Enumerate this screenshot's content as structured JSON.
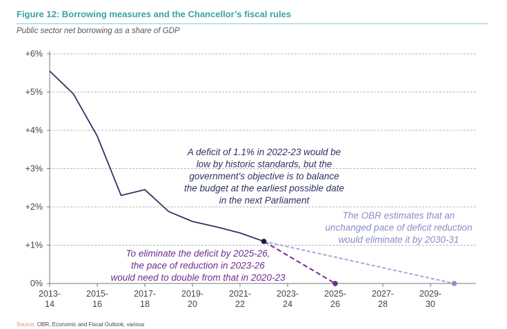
{
  "header": {
    "title": "Figure 12: Borrowing measures and the Chancellor’s fiscal rules",
    "subtitle": "Public sector net borrowing as a share of GDP"
  },
  "source": {
    "label": "Source:",
    "text": "OBR, Economic and Fiscal Outlook, various"
  },
  "colors": {
    "actual": "#2e3163",
    "purple": "#6f2c91",
    "lavender": "#a4a6d4",
    "lavender_point": "#8c8ec8",
    "grid": "#b5b5b5",
    "title": "#3aa3a3"
  },
  "chart_data": {
    "type": "line",
    "y_tick_labels": [
      "0%",
      "+1%",
      "+2%",
      "+3%",
      "+4%",
      "+5%",
      "+6%"
    ],
    "y_tick_values": [
      0,
      1,
      2,
      3,
      4,
      5,
      6
    ],
    "ylim": [
      0,
      6
    ],
    "x_tick_labels": [
      [
        "2013-",
        "14"
      ],
      [
        "2015-",
        "16"
      ],
      [
        "2017-",
        "18"
      ],
      [
        "2019-",
        "20"
      ],
      [
        "2021-",
        "22"
      ],
      [
        "2023-",
        "24"
      ],
      [
        "2025-",
        "26"
      ],
      [
        "2027-",
        "28"
      ],
      [
        "2029-",
        "30"
      ]
    ],
    "grid": true,
    "series": [
      {
        "style": "solid",
        "x": [
          "2013-14",
          "2014-15",
          "2015-16",
          "2016-17",
          "2017-18",
          "2018-19",
          "2019-20",
          "2020-21",
          "2021-22",
          "2022-23"
        ],
        "values": [
          5.55,
          4.95,
          3.85,
          2.3,
          2.45,
          1.88,
          1.62,
          1.48,
          1.32,
          1.1
        ]
      },
      {
        "style": "dashed",
        "x": [
          "2022-23",
          "2025-26"
        ],
        "values": [
          1.1,
          0
        ]
      },
      {
        "style": "dashed",
        "x": [
          "2022-23",
          "2030-31"
        ],
        "values": [
          1.1,
          0
        ]
      }
    ],
    "annotations": [
      {
        "lines": [
          "A deficit of 1.1% in 2022-23 would be",
          "low by historic standards, but the",
          "government's objective is to balance",
          "the budget at the earliest possible date",
          "in the next Parliament"
        ]
      },
      {
        "lines": [
          "The OBR estimates that an",
          "unchanged pace of deficit reduction",
          "would eliminate it by 2030-31"
        ]
      },
      {
        "lines": [
          "To eliminate the deficit by 2025-26,",
          "the pace of reduction in 2023-26",
          "would need to double from that in 2020-23"
        ]
      }
    ]
  }
}
